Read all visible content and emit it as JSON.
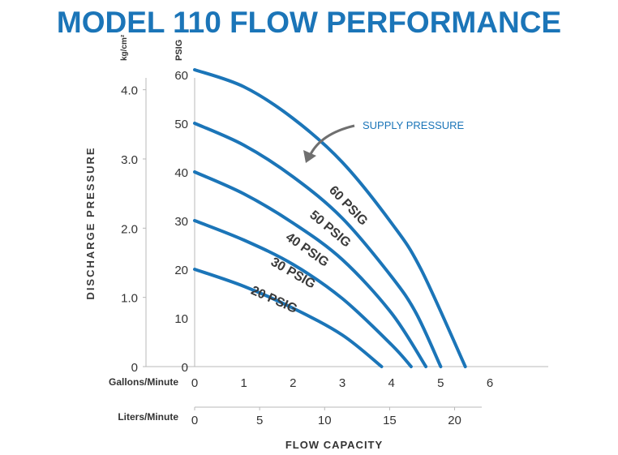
{
  "chart_data": {
    "type": "line",
    "title": "MODEL 110 FLOW PERFORMANCE",
    "ylabel": "DISCHARGE PRESSURE",
    "xlabel": "FLOW CAPACITY",
    "y_units_psi": "PSIG",
    "y_units_metric": "kg/cm²",
    "x_units_gpm": "Gallons/Minute",
    "x_units_lpm": "Liters/Minute",
    "psig_ticks": [
      "0",
      "10",
      "20",
      "30",
      "40",
      "50",
      "60"
    ],
    "kg_ticks": [
      "0",
      "1.0",
      "2.0",
      "3.0",
      "4.0"
    ],
    "gpm_ticks": [
      "0",
      "1",
      "2",
      "3",
      "4",
      "5",
      "6"
    ],
    "lpm_ticks": [
      "0",
      "5",
      "10",
      "15",
      "20"
    ],
    "xlim": [
      0,
      7
    ],
    "ylim": [
      0,
      61
    ],
    "grid": false,
    "annotation": "SUPPLY PRESSURE",
    "line_color": "#1b75b8",
    "title_color": "#1b75b8",
    "series": [
      {
        "name": "60 PSIG",
        "x": [
          0,
          1,
          2,
          3,
          4,
          4.6,
          5.5
        ],
        "y": [
          61,
          57.5,
          51,
          42,
          29.5,
          20,
          0
        ]
      },
      {
        "name": "50 PSIG",
        "x": [
          0,
          1,
          2,
          3,
          4,
          4.5,
          5.0
        ],
        "y": [
          50,
          45.5,
          39,
          30.5,
          18.5,
          11,
          0
        ]
      },
      {
        "name": "40 PSIG",
        "x": [
          0,
          1,
          2,
          3,
          4,
          4.7
        ],
        "y": [
          40,
          35.5,
          29.5,
          22,
          11,
          0
        ]
      },
      {
        "name": "30 PSIG",
        "x": [
          0,
          1,
          2,
          3,
          4,
          4.4
        ],
        "y": [
          30,
          26,
          21,
          14,
          4.5,
          0
        ]
      },
      {
        "name": "20 PSIG",
        "x": [
          0,
          1,
          2,
          3,
          3.8
        ],
        "y": [
          20,
          16.5,
          12,
          6.5,
          0
        ]
      }
    ]
  }
}
